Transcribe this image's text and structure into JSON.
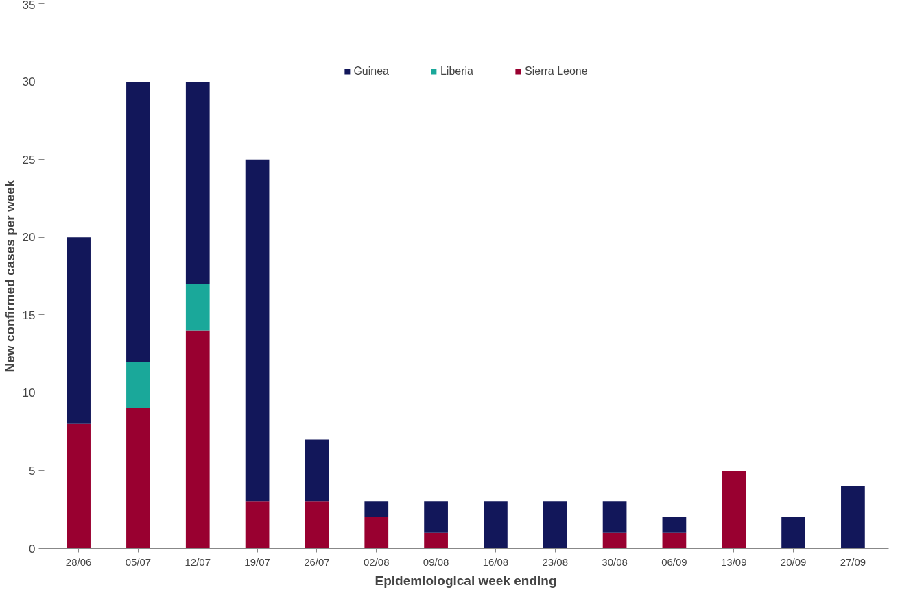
{
  "chart_data": {
    "type": "bar",
    "stacked": true,
    "xlabel": "Epidemiological week ending",
    "ylabel": "New confirmed cases per week",
    "categories": [
      "28/06",
      "05/07",
      "12/07",
      "19/07",
      "26/07",
      "02/08",
      "09/08",
      "16/08",
      "23/08",
      "30/08",
      "06/09",
      "13/09",
      "20/09",
      "27/09"
    ],
    "series": [
      {
        "name": "Sierra Leone",
        "color": "#990030",
        "values": [
          8,
          9,
          14,
          3,
          3,
          2,
          1,
          0,
          0,
          1,
          1,
          5,
          0,
          0
        ]
      },
      {
        "name": "Liberia",
        "color": "#1aa89a",
        "values": [
          0,
          3,
          3,
          0,
          0,
          0,
          0,
          0,
          0,
          0,
          0,
          0,
          0,
          0
        ]
      },
      {
        "name": "Guinea",
        "color": "#12175a",
        "values": [
          12,
          18,
          13,
          22,
          4,
          1,
          2,
          3,
          3,
          2,
          1,
          0,
          2,
          4
        ]
      }
    ],
    "ylim": [
      0,
      35
    ],
    "yticks": [
      0,
      5,
      10,
      15,
      20,
      25,
      30,
      35
    ],
    "grid": false,
    "legend": "top"
  }
}
